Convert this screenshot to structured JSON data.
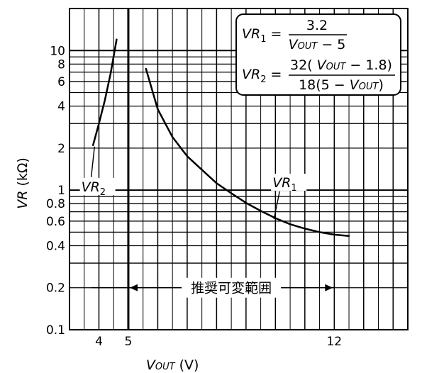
{
  "chart_data": {
    "type": "line",
    "x_scale": "linear",
    "y_scale": "log",
    "xlim": [
      3,
      14.5
    ],
    "ylim": [
      0.1,
      20
    ],
    "x_tick_labels": [
      "4",
      "5",
      "12"
    ],
    "x_ticks": [
      4,
      5,
      12
    ],
    "y_tick_labels": [
      "0.1",
      "0.2",
      "0.4",
      "0.6",
      "0.8",
      "1",
      "2",
      "4",
      "6",
      "8",
      "10"
    ],
    "y_ticks": [
      0.1,
      0.2,
      0.4,
      0.6,
      0.8,
      1,
      2,
      4,
      6,
      8,
      10
    ],
    "xlabel": {
      "main": "V",
      "sub": "OUT",
      "unit": "(V)"
    },
    "ylabel": {
      "main": "VR",
      "unit": "(kΩ)"
    },
    "grid": true,
    "series": [
      {
        "name": "VR1",
        "label_main": "VR",
        "label_sub": "1",
        "x": [
          5.6,
          6.0,
          6.5,
          7.0,
          7.5,
          8.0,
          8.5,
          9.0,
          9.5,
          10.0,
          10.5,
          11.0,
          11.5,
          12.0,
          12.5
        ],
        "y": [
          7.4,
          3.8,
          2.4,
          1.75,
          1.4,
          1.12,
          0.95,
          0.81,
          0.71,
          0.63,
          0.57,
          0.53,
          0.5,
          0.48,
          0.47
        ]
      },
      {
        "name": "VR2",
        "label_main": "VR",
        "label_sub": "2",
        "x": [
          3.8,
          4.0,
          4.2,
          4.4,
          4.6
        ],
        "y": [
          2.1,
          3.0,
          4.4,
          6.9,
          12.0
        ]
      }
    ],
    "annotations": {
      "range_label": "推奨可変範囲",
      "range_x": [
        5,
        12
      ],
      "range_y": 0.2,
      "formula_box": {
        "vr1": {
          "lhs": "VR",
          "lhs_sub": "1",
          "numerator": "3.2",
          "den_v": "V",
          "den_sub": "OUT",
          "den_rest": " − 5"
        },
        "vr2": {
          "lhs": "VR",
          "lhs_sub": "2",
          "num_pre": "32( ",
          "num_v": "V",
          "num_sub": "OUT",
          "num_post": " − 1.8)",
          "den_pre": "18(5 − ",
          "den_v": "V",
          "den_sub": "OUT",
          "den_post": ")"
        }
      }
    }
  }
}
